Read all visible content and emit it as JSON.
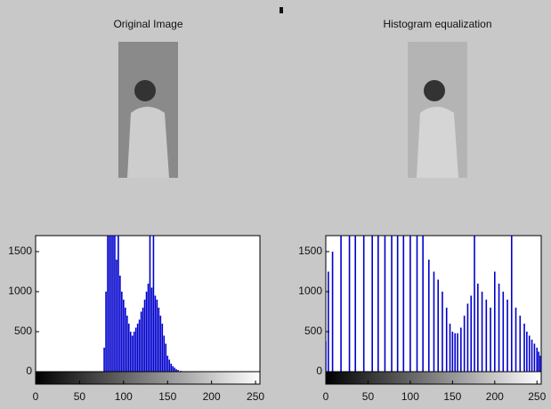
{
  "chart_data": [
    {
      "type": "image",
      "title": "Original Image",
      "tone": "#8a8a8a"
    },
    {
      "type": "image",
      "title": "Histogram equalization",
      "tone": "#b4b4b4"
    },
    {
      "type": "stem",
      "color": "#0000cc",
      "xlim": [
        0,
        255
      ],
      "ylim": [
        0,
        1700
      ],
      "xticks": [
        0,
        50,
        100,
        150,
        200,
        250
      ],
      "yticks": [
        0,
        500,
        1000,
        1500
      ],
      "x": [
        78,
        80,
        82,
        84,
        86,
        88,
        90,
        92,
        94,
        96,
        98,
        100,
        102,
        104,
        106,
        108,
        110,
        112,
        114,
        116,
        118,
        120,
        122,
        124,
        126,
        128,
        130,
        132,
        134,
        136,
        138,
        140,
        142,
        144,
        146,
        148,
        150,
        152,
        154,
        156,
        158,
        160,
        162,
        165
      ],
      "values": [
        300,
        1000,
        1700,
        1700,
        1700,
        1700,
        1700,
        1400,
        1700,
        1200,
        1000,
        900,
        800,
        700,
        600,
        500,
        450,
        500,
        550,
        600,
        650,
        750,
        800,
        900,
        1000,
        1100,
        1700,
        1050,
        1700,
        950,
        900,
        800,
        700,
        600,
        450,
        350,
        200,
        150,
        100,
        70,
        50,
        30,
        20,
        10
      ]
    },
    {
      "type": "stem",
      "color": "#0000cc",
      "xlim": [
        0,
        255
      ],
      "ylim": [
        0,
        1700
      ],
      "xticks": [
        0,
        50,
        100,
        150,
        200,
        250
      ],
      "yticks": [
        0,
        500,
        1000,
        1500
      ],
      "x": [
        0,
        3,
        8,
        18,
        28,
        35,
        45,
        55,
        62,
        70,
        78,
        85,
        92,
        100,
        108,
        115,
        122,
        128,
        133,
        138,
        143,
        147,
        150,
        153,
        156,
        160,
        164,
        168,
        172,
        176,
        180,
        185,
        190,
        195,
        200,
        205,
        210,
        215,
        220,
        225,
        230,
        235,
        238,
        241,
        244,
        247,
        250,
        252,
        254,
        255
      ],
      "values": [
        380,
        1250,
        1500,
        1700,
        1700,
        1700,
        1700,
        1700,
        1700,
        1700,
        1700,
        1700,
        1700,
        1700,
        1700,
        1700,
        1400,
        1250,
        1150,
        1000,
        800,
        600,
        500,
        480,
        480,
        550,
        700,
        850,
        950,
        1700,
        1100,
        1000,
        900,
        800,
        1250,
        1100,
        1000,
        900,
        1700,
        800,
        700,
        600,
        500,
        450,
        400,
        350,
        300,
        250,
        200,
        150
      ]
    }
  ]
}
